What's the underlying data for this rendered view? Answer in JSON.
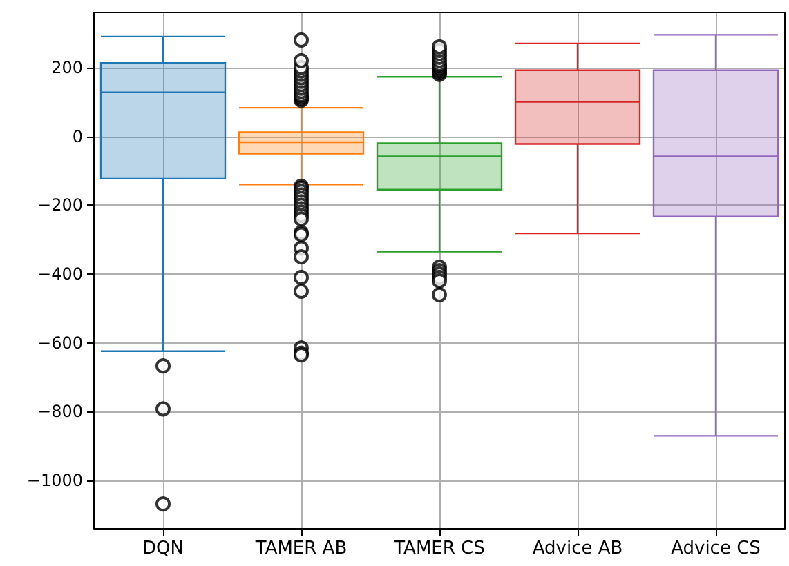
{
  "chart_data": {
    "type": "box",
    "categories": [
      "DQN",
      "TAMER AB",
      "TAMER CS",
      "Advice AB",
      "Advice CS"
    ],
    "colors": [
      "#1f77b4",
      "#ff7f0e",
      "#2ca02c",
      "#d62728",
      "#9467bd"
    ],
    "boxes": [
      {
        "low": -624,
        "q1": -123,
        "median": 128,
        "q3": 213,
        "high": 290,
        "outliers": [
          -667,
          -792,
          -1068
        ]
      },
      {
        "low": -140,
        "q1": -50,
        "median": -17,
        "q3": 12,
        "high": 83,
        "outliers": [
          105,
          110,
          115,
          120,
          130,
          140,
          150,
          160,
          170,
          180,
          190,
          200,
          220,
          280,
          -145,
          -150,
          -160,
          -170,
          -180,
          -190,
          -200,
          -210,
          -220,
          -230,
          -240,
          -280,
          -285,
          -325,
          -350,
          -410,
          -450,
          -615,
          -630,
          -635
        ]
      },
      {
        "low": -335,
        "q1": -155,
        "median": -58,
        "q3": -20,
        "high": 173,
        "outliers": [
          180,
          185,
          190,
          195,
          200,
          205,
          210,
          220,
          230,
          240,
          250,
          260,
          -380,
          -390,
          -400,
          -410,
          -420,
          -460
        ]
      },
      {
        "low": -282,
        "q1": -22,
        "median": 100,
        "q3": 192,
        "high": 270
      },
      {
        "low": -870,
        "q1": -233,
        "median": -58,
        "q3": 192,
        "high": 295
      }
    ],
    "ylim": [
      -1140,
      360
    ],
    "yticks": [
      -1000,
      -800,
      -600,
      -400,
      -200,
      0,
      200
    ],
    "grid": true,
    "marker": "circle"
  }
}
